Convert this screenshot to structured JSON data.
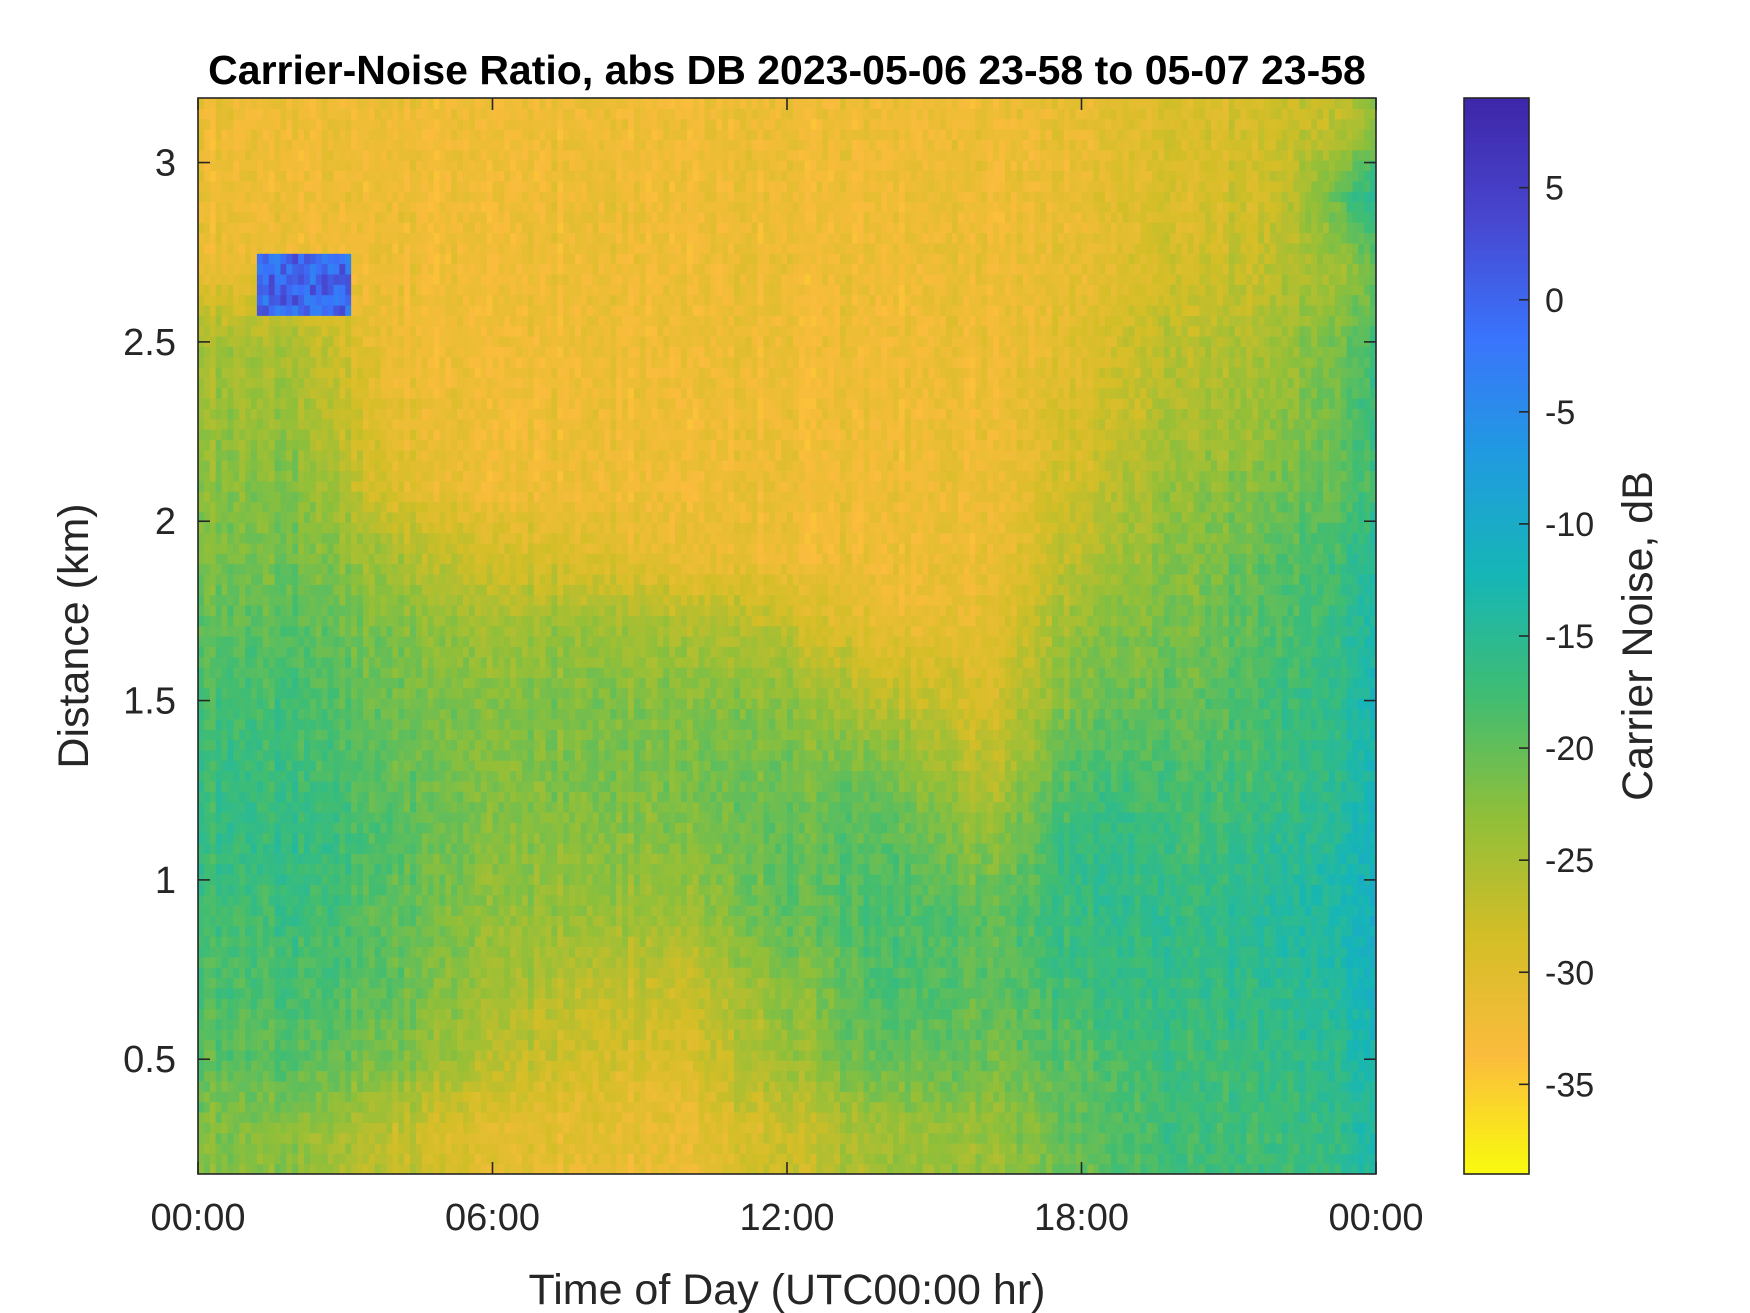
{
  "chart_data": {
    "type": "heatmap",
    "title": "Carrier-Noise Ratio, abs DB 2023-05-06 23-58 to 05-07 23-58",
    "xlabel": "Time of Day (UTC00:00 hr)",
    "ylabel": "Distance (km)",
    "colorbar_label": "Carrier Noise, dB",
    "x_range_hours": [
      0,
      24
    ],
    "y_range_km": [
      0.18,
      3.18
    ],
    "color_range_db": [
      -39,
      9
    ],
    "x_ticks": [
      {
        "value": 0,
        "label": "00:00"
      },
      {
        "value": 6,
        "label": "06:00"
      },
      {
        "value": 12,
        "label": "12:00"
      },
      {
        "value": 18,
        "label": "18:00"
      },
      {
        "value": 24,
        "label": "00:00"
      }
    ],
    "y_ticks": [
      {
        "value": 0.5,
        "label": "0.5"
      },
      {
        "value": 1,
        "label": "1"
      },
      {
        "value": 1.5,
        "label": "1.5"
      },
      {
        "value": 2,
        "label": "2"
      },
      {
        "value": 2.5,
        "label": "2.5"
      },
      {
        "value": 3,
        "label": "3"
      }
    ],
    "colorbar_ticks": [
      {
        "value": 5,
        "label": "5"
      },
      {
        "value": 0,
        "label": "0"
      },
      {
        "value": -5,
        "label": "-5"
      },
      {
        "value": -10,
        "label": "-10"
      },
      {
        "value": -15,
        "label": "-15"
      },
      {
        "value": -20,
        "label": "-20"
      },
      {
        "value": -25,
        "label": "-25"
      },
      {
        "value": -30,
        "label": "-30"
      },
      {
        "value": -35,
        "label": "-35"
      }
    ],
    "colormap": "parula-reversed",
    "colormap_stops": [
      "#f9fb0e",
      "#fbbc3d",
      "#d3be27",
      "#8fbf3a",
      "#40bd72",
      "#16b6b6",
      "#209bdf",
      "#3a74fc",
      "#4846cf",
      "#3e26a8"
    ],
    "grid": false,
    "row_heights_km": [
      0.3,
      0.5,
      0.7,
      0.9,
      1.1,
      1.3,
      1.5,
      1.7,
      1.9,
      2.1,
      2.3,
      2.5,
      2.7,
      2.9,
      3.1
    ],
    "column_times_hr": [
      0,
      2,
      4,
      6,
      8,
      10,
      12,
      14,
      16,
      18,
      20,
      22,
      24
    ],
    "values_db": [
      [
        -22,
        -23,
        -27,
        -30,
        -31,
        -31,
        -28,
        -24,
        -24,
        -20,
        -17,
        -18,
        -14
      ],
      [
        -20,
        -19,
        -22,
        -26,
        -29,
        -29,
        -24,
        -20,
        -21,
        -19,
        -17,
        -17,
        -13
      ],
      [
        -19,
        -18,
        -20,
        -24,
        -27,
        -27,
        -23,
        -18,
        -20,
        -17,
        -16,
        -16,
        -12
      ],
      [
        -18,
        -17,
        -20,
        -23,
        -24,
        -24,
        -20,
        -18,
        -20,
        -16,
        -16,
        -15,
        -11
      ],
      [
        -17,
        -16,
        -19,
        -22,
        -23,
        -22,
        -20,
        -19,
        -23,
        -16,
        -17,
        -16,
        -12
      ],
      [
        -17,
        -17,
        -20,
        -22,
        -22,
        -21,
        -21,
        -21,
        -27,
        -18,
        -18,
        -18,
        -13
      ],
      [
        -18,
        -18,
        -21,
        -22,
        -22,
        -22,
        -23,
        -26,
        -29,
        -21,
        -20,
        -18,
        -13
      ],
      [
        -20,
        -19,
        -22,
        -24,
        -24,
        -25,
        -27,
        -31,
        -31,
        -23,
        -21,
        -19,
        -14
      ],
      [
        -22,
        -21,
        -25,
        -28,
        -30,
        -31,
        -32,
        -32,
        -32,
        -26,
        -22,
        -20,
        -15
      ],
      [
        -23,
        -22,
        -30,
        -32,
        -32,
        -32,
        -32,
        -32,
        -32,
        -28,
        -23,
        -22,
        -18
      ],
      [
        -24,
        -24,
        -31,
        -32,
        -32,
        -32,
        -32,
        -32,
        -32,
        -29,
        -25,
        -24,
        -17
      ],
      [
        -25,
        -25,
        -32,
        -32,
        -32,
        -32,
        -32,
        -32,
        -32,
        -30,
        -26,
        -25,
        -18
      ],
      [
        -31,
        -32,
        -32,
        -32,
        -32,
        -32,
        -32,
        -32,
        -32,
        -31,
        -28,
        -27,
        -22
      ],
      [
        -32,
        -32,
        -32,
        -32,
        -32,
        -32,
        -32,
        -32,
        -32,
        -31,
        -29,
        -28,
        -14
      ],
      [
        -32,
        -32,
        -32,
        -32,
        -32,
        -32,
        -32,
        -32,
        -32,
        -31,
        -29,
        -29,
        -24
      ]
    ],
    "high_value_patch": {
      "time_hr": [
        1.2,
        3.1
      ],
      "distance_km": [
        2.56,
        2.76
      ],
      "value_db": 4
    }
  }
}
